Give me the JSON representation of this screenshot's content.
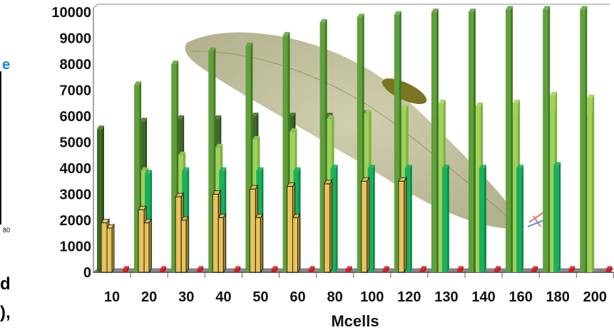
{
  "colors": {
    "dark_green": "#3f6a26",
    "mid_green": "#5fa03a",
    "light_green": "#9fd15a",
    "teal": "#17b15b",
    "gold": "#e8c35a",
    "red": "#e0161c",
    "fragment_blue": "#1e7fd0"
  },
  "left_fragments": {
    "letter": "e",
    "tiny": "80",
    "line1": "d",
    "line2": "),"
  },
  "chart_data": {
    "type": "bar",
    "xlabel": "Mcells",
    "ylabel": "",
    "ylim": [
      0,
      10000
    ],
    "yticks": [
      0,
      1000,
      2000,
      3000,
      4000,
      5000,
      6000,
      7000,
      8000,
      9000,
      10000
    ],
    "grid": false,
    "categories": [
      "10",
      "20",
      "30",
      "40",
      "50",
      "60",
      "80",
      "100",
      "120",
      "130",
      "140",
      "160",
      "180",
      "200"
    ],
    "series": [
      {
        "values": [
          5500,
          5800,
          5900,
          5900,
          6000,
          6000,
          6000,
          6100,
          6100,
          6000,
          6000,
          6000,
          6100,
          6000
        ]
      },
      {
        "values": [
          null,
          7200,
          8000,
          8500,
          8700,
          9100,
          9600,
          9800,
          9900,
          10000,
          10000,
          10100,
          10100,
          10100
        ]
      },
      {
        "values": [
          null,
          3900,
          4500,
          4800,
          5100,
          5400,
          5900,
          6100,
          6300,
          6500,
          6400,
          6500,
          6800,
          6700
        ]
      },
      {
        "values": [
          null,
          3800,
          3900,
          3900,
          3900,
          3900,
          4000,
          4000,
          4000,
          4000,
          4000,
          4000,
          4100,
          null
        ]
      },
      {
        "values": [
          1900,
          2400,
          2900,
          3000,
          3200,
          3300,
          3400,
          3500,
          3500,
          null,
          null,
          null,
          null,
          null
        ]
      },
      {
        "values": [
          1700,
          1900,
          2000,
          2100,
          2100,
          2100,
          null,
          null,
          null,
          null,
          null,
          null,
          null,
          null
        ]
      },
      {
        "values": [
          100,
          100,
          100,
          100,
          100,
          100,
          100,
          100,
          100,
          100,
          100,
          100,
          100,
          100
        ]
      }
    ]
  }
}
